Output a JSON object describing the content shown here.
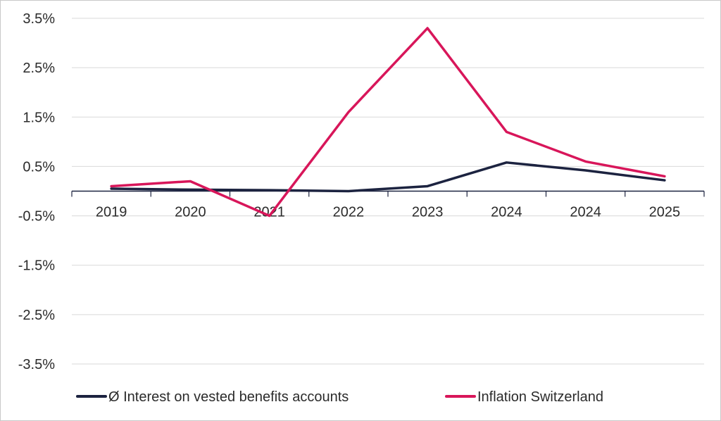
{
  "chart_data": {
    "type": "line",
    "title": "",
    "xlabel": "",
    "ylabel": "",
    "categories": [
      "2019",
      "2020",
      "2021",
      "2022",
      "2023",
      "2024",
      "2024",
      "2025"
    ],
    "y_ticks": [
      3.5,
      2.5,
      1.5,
      0.5,
      -0.5,
      -1.5,
      -2.5,
      -3.5
    ],
    "y_tick_labels": [
      "3.5%",
      "2.5%",
      "1.5%",
      "0.5%",
      "-0.5%",
      "-1.5%",
      "-2.5%",
      "-3.5%"
    ],
    "ylim": [
      -3.5,
      3.5
    ],
    "grid": true,
    "legend_position": "bottom",
    "series": [
      {
        "name": "Ø Interest on vested benefits accounts",
        "color": "#1c2340",
        "values": [
          0.05,
          0.03,
          0.02,
          0.0,
          0.1,
          0.58,
          0.42,
          0.22
        ]
      },
      {
        "name": "Inflation Switzerland",
        "color": "#d8165a",
        "values": [
          0.1,
          0.2,
          -0.5,
          1.6,
          3.3,
          1.2,
          0.6,
          0.3
        ]
      }
    ]
  }
}
